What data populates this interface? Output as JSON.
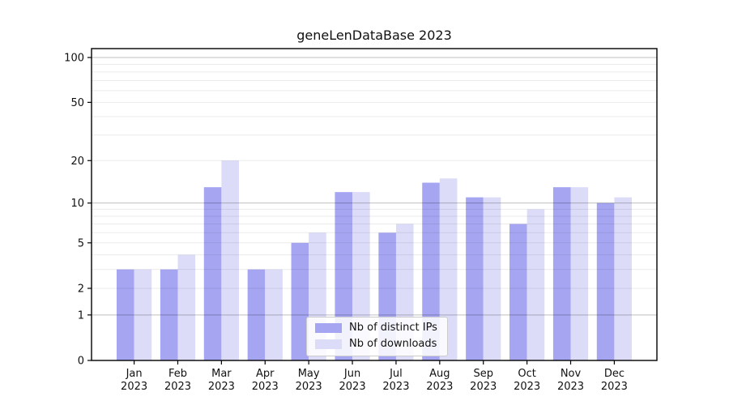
{
  "chart_data": {
    "type": "bar",
    "title": "geneLenDataBase 2023",
    "categories": [
      "Jan",
      "Feb",
      "Mar",
      "Apr",
      "May",
      "Jun",
      "Jul",
      "Aug",
      "Sep",
      "Oct",
      "Nov",
      "Dec"
    ],
    "category_year": "2023",
    "series": [
      {
        "name": "Nb of distinct IPs",
        "color": "#a5a5f2",
        "values": [
          3,
          3,
          13,
          3,
          5,
          12,
          6,
          14,
          11,
          7,
          13,
          10
        ]
      },
      {
        "name": "Nb of downloads",
        "color": "#dcdcf9",
        "values": [
          3,
          4,
          20,
          3,
          6,
          12,
          7,
          15,
          11,
          9,
          13,
          11
        ]
      }
    ],
    "yscale": "log1p",
    "yticks": [
      0,
      1,
      2,
      5,
      10,
      20,
      50,
      100
    ],
    "ylim": [
      0,
      115
    ],
    "major_gridlines": [
      1,
      10,
      100
    ],
    "minor_gridlines": [
      2,
      3,
      4,
      5,
      6,
      7,
      8,
      9,
      20,
      30,
      40,
      50,
      60,
      70,
      80,
      90
    ],
    "grid": true,
    "legend_position": "lower center",
    "axis_color": "#000000",
    "tick_label_color": "#111111",
    "major_grid_color": "rgba(0,0,0,0.25)",
    "minor_grid_color": "rgba(0,0,0,0.08)"
  }
}
